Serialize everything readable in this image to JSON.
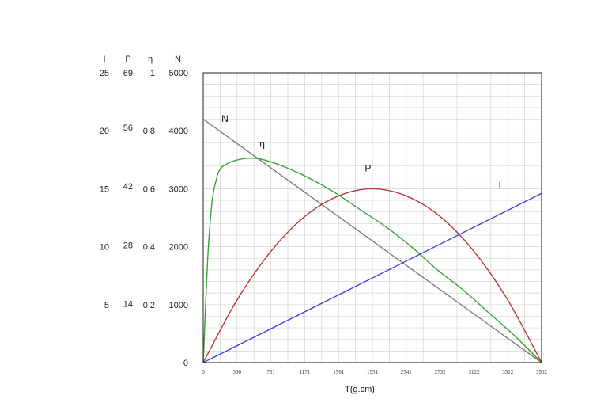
{
  "chart_data": {
    "type": "line",
    "xlabel": "T(g.cm)",
    "x_ticks": [
      0,
      390,
      781,
      1171,
      1561,
      1951,
      2341,
      2732,
      3122,
      3512,
      3902
    ],
    "xlim": [
      0,
      3902
    ],
    "y_axes": [
      {
        "name": "I",
        "ticks": [
          5,
          10,
          15,
          20,
          25
        ],
        "max": 25
      },
      {
        "name": "P",
        "ticks": [
          14,
          28,
          42,
          56,
          69
        ],
        "max": 69
      },
      {
        "name": "η",
        "ticks": [
          0.2,
          0.4,
          0.6,
          0.8,
          1
        ],
        "max": 1
      },
      {
        "name": "N",
        "ticks": [
          0,
          1000,
          2000,
          3000,
          4000,
          5000
        ],
        "max": 5000
      }
    ],
    "series": [
      {
        "name": "N",
        "axis": "N",
        "color": "#7f7f7f",
        "label_at": [
          250,
          4150
        ],
        "points": [
          [
            0,
            4200
          ],
          [
            3902,
            0
          ]
        ]
      },
      {
        "name": "η",
        "axis": "η",
        "color": "#3aa13a",
        "label_at": [
          680,
          3720
        ],
        "points": [
          [
            0,
            0
          ],
          [
            50,
            0.35
          ],
          [
            100,
            0.55
          ],
          [
            150,
            0.63
          ],
          [
            200,
            0.67
          ],
          [
            300,
            0.69
          ],
          [
            400,
            0.7
          ],
          [
            500,
            0.705
          ],
          [
            600,
            0.705
          ],
          [
            700,
            0.7
          ],
          [
            900,
            0.68
          ],
          [
            1200,
            0.64
          ],
          [
            1500,
            0.59
          ],
          [
            1800,
            0.53
          ],
          [
            2100,
            0.47
          ],
          [
            2400,
            0.4
          ],
          [
            2700,
            0.32
          ],
          [
            3000,
            0.25
          ],
          [
            3300,
            0.17
          ],
          [
            3600,
            0.09
          ],
          [
            3902,
            0
          ]
        ]
      },
      {
        "name": "P",
        "axis": "P",
        "color": "#b03a3a",
        "label_at": [
          1900,
          3300
        ],
        "points": [
          [
            0,
            0
          ],
          [
            390,
            14.9
          ],
          [
            781,
            26.5
          ],
          [
            1171,
            34.8
          ],
          [
            1561,
            39.7
          ],
          [
            1951,
            41.4
          ],
          [
            2341,
            39.7
          ],
          [
            2732,
            34.8
          ],
          [
            3122,
            26.5
          ],
          [
            3512,
            14.9
          ],
          [
            3902,
            0
          ]
        ]
      },
      {
        "name": "I",
        "axis": "I",
        "color": "#4040dd",
        "label_at": [
          3420,
          3000
        ],
        "points": [
          [
            0,
            0
          ],
          [
            3902,
            14.6
          ]
        ]
      }
    ],
    "grid": true
  }
}
